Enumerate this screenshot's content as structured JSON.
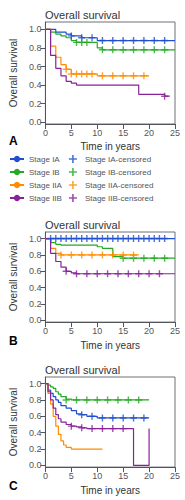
{
  "chart_data": [
    {
      "type": "line",
      "title": "Overall survival",
      "annotation": "A",
      "xlabel": "Time in years",
      "ylabel": "Overall survival",
      "xlim": [
        0,
        25
      ],
      "xticks": [
        0,
        5,
        10,
        15,
        20,
        25
      ],
      "ylim": [
        -0.02,
        1.08
      ],
      "yticks": [
        {
          "value": 0.0,
          "label": "0.0"
        },
        0.2,
        0.4,
        0.6,
        0.8,
        {
          "value": 1.0,
          "label": "1.0"
        }
      ],
      "grid": false,
      "legend": "bottom",
      "series": [
        {
          "name": "Stage IA",
          "type": "step",
          "color": "#1f4fcc",
          "x": [
            0,
            1,
            2,
            3,
            4,
            5,
            6,
            7,
            8,
            9,
            10,
            11,
            12,
            13,
            14,
            15,
            16,
            17,
            18,
            19,
            20,
            21,
            22,
            23,
            24,
            25
          ],
          "values": [
            1.0,
            1.0,
            0.97,
            0.97,
            0.95,
            0.93,
            0.93,
            0.91,
            0.91,
            0.91,
            0.88,
            0.88,
            0.88,
            0.88,
            0.88,
            0.88,
            0.88,
            0.88,
            0.88,
            0.88,
            0.88,
            0.88,
            0.88,
            0.88,
            0.88,
            0.88
          ]
        },
        {
          "name": "Stage IB",
          "type": "step",
          "color": "#22aa22",
          "x": [
            0,
            1,
            2,
            3,
            4,
            5,
            6,
            7,
            8,
            9,
            10,
            11,
            12,
            13,
            14,
            15,
            16,
            17,
            18,
            19,
            20,
            21,
            22,
            23,
            24,
            25
          ],
          "values": [
            1.0,
            0.97,
            0.95,
            0.93,
            0.91,
            0.88,
            0.86,
            0.86,
            0.86,
            0.86,
            0.8,
            0.78,
            0.78,
            0.78,
            0.78,
            0.78,
            0.78,
            0.78,
            0.78,
            0.78,
            0.78,
            0.78,
            0.78,
            0.78,
            0.78,
            0.78
          ]
        },
        {
          "name": "Stage IIA",
          "type": "step",
          "color": "#ff8c00",
          "x": [
            0,
            1,
            2,
            3,
            4,
            5,
            6,
            7,
            8,
            9,
            10,
            11,
            12,
            13,
            14,
            15,
            16,
            17,
            18,
            19,
            20
          ],
          "values": [
            1.0,
            0.82,
            0.7,
            0.62,
            0.57,
            0.52,
            0.52,
            0.52,
            0.52,
            0.52,
            0.5,
            0.5,
            0.5,
            0.5,
            0.5,
            0.5,
            0.5,
            0.5,
            0.5,
            0.5,
            0.5
          ]
        },
        {
          "name": "Stage IIB",
          "type": "step",
          "color": "#882299",
          "x": [
            0,
            1,
            2,
            3,
            4,
            5,
            6,
            7,
            8,
            9,
            10,
            11,
            12,
            13,
            14,
            15,
            16,
            17,
            18,
            19,
            20,
            21,
            22,
            23,
            24
          ],
          "values": [
            1.0,
            0.72,
            0.58,
            0.5,
            0.44,
            0.42,
            0.4,
            0.4,
            0.4,
            0.4,
            0.4,
            0.4,
            0.4,
            0.4,
            0.4,
            0.4,
            0.4,
            0.4,
            0.3,
            0.3,
            0.3,
            0.3,
            0.3,
            0.28,
            0.28
          ]
        },
        {
          "name": "Stage IA-censored",
          "type": "scatter",
          "marker": "plus",
          "color": "#1f4fcc",
          "x": [
            5,
            7,
            9,
            11,
            13,
            15,
            17,
            19,
            21,
            23
          ],
          "values": [
            0.93,
            0.91,
            0.91,
            0.88,
            0.88,
            0.88,
            0.88,
            0.88,
            0.88,
            0.88
          ]
        },
        {
          "name": "Stage IB-censored",
          "type": "scatter",
          "marker": "plus",
          "color": "#22aa22",
          "x": [
            6,
            7,
            8,
            11,
            13,
            15,
            17,
            19,
            21,
            23
          ],
          "values": [
            0.86,
            0.86,
            0.86,
            0.78,
            0.78,
            0.78,
            0.78,
            0.78,
            0.78,
            0.78
          ]
        },
        {
          "name": "Stage IIA-censored",
          "type": "scatter",
          "marker": "plus",
          "color": "#ff8c00",
          "x": [
            4,
            5,
            6,
            7,
            8,
            9,
            11,
            13,
            15,
            17,
            19
          ],
          "values": [
            0.57,
            0.52,
            0.52,
            0.52,
            0.52,
            0.52,
            0.5,
            0.5,
            0.5,
            0.5,
            0.5
          ]
        },
        {
          "name": "Stage IIB-censored",
          "type": "scatter",
          "marker": "plus",
          "color": "#882299",
          "x": [
            23
          ],
          "values": [
            0.28
          ]
        }
      ]
    },
    {
      "type": "line",
      "title": "Overall survival",
      "annotation": "B",
      "xlabel": "Time in years",
      "ylabel": "Overall survival",
      "xlim": [
        0,
        25
      ],
      "xticks": [
        0,
        5,
        10,
        15,
        20,
        25
      ],
      "ylim": [
        -0.02,
        1.08
      ],
      "yticks": [
        {
          "value": 0.0,
          "label": "0.0"
        },
        0.2,
        0.4,
        0.6,
        0.8,
        {
          "value": 1.0,
          "label": "1.0"
        }
      ],
      "grid": false,
      "series": [
        {
          "name": "Stage IA",
          "type": "step",
          "color": "#1f4fcc",
          "x": [
            0,
            0.5,
            1,
            2,
            3,
            4,
            5,
            6,
            7,
            8,
            9,
            10,
            11,
            12,
            13,
            14,
            15,
            16,
            17,
            18,
            19,
            20,
            21,
            22,
            23,
            24,
            25
          ],
          "values": [
            1.0,
            1.0,
            1.0,
            1.0,
            1.0,
            1.0,
            1.0,
            1.0,
            1.0,
            1.0,
            1.0,
            1.0,
            1.0,
            1.0,
            1.0,
            1.0,
            1.0,
            1.0,
            1.0,
            1.0,
            1.0,
            1.0,
            1.0,
            1.0,
            1.0,
            1.0,
            1.0
          ]
        },
        {
          "name": "Stage IB",
          "type": "step",
          "color": "#22aa22",
          "x": [
            0,
            1,
            2,
            3,
            4,
            5,
            6,
            7,
            8,
            9,
            10,
            11,
            12,
            13,
            14,
            15,
            16,
            17,
            18,
            19,
            20,
            21,
            22,
            23,
            24,
            25
          ],
          "values": [
            1.0,
            0.95,
            0.93,
            0.92,
            0.92,
            0.92,
            0.92,
            0.92,
            0.92,
            0.92,
            0.9,
            0.88,
            0.88,
            0.78,
            0.78,
            0.76,
            0.76,
            0.76,
            0.76,
            0.76,
            0.76,
            0.76,
            0.76,
            0.76,
            0.76,
            0.76
          ]
        },
        {
          "name": "Stage IIA",
          "type": "step",
          "color": "#ff8c00",
          "x": [
            0,
            1,
            2,
            3,
            4,
            5,
            6,
            7,
            8,
            9,
            10,
            11,
            12,
            13,
            14,
            15,
            16,
            17,
            18
          ],
          "values": [
            1.0,
            0.88,
            0.82,
            0.8,
            0.8,
            0.8,
            0.8,
            0.8,
            0.8,
            0.8,
            0.8,
            0.8,
            0.8,
            0.8,
            0.8,
            0.8,
            0.8,
            0.8,
            0.8
          ]
        },
        {
          "name": "Stage IIB",
          "type": "step",
          "color": "#882299",
          "x": [
            0,
            1,
            2,
            3,
            4,
            5,
            6,
            7,
            8,
            9,
            10,
            11,
            12,
            13,
            14,
            15,
            16,
            17,
            18,
            19,
            20,
            21,
            22,
            23,
            24,
            25
          ],
          "values": [
            1.0,
            0.82,
            0.72,
            0.65,
            0.6,
            0.58,
            0.57,
            0.57,
            0.57,
            0.57,
            0.57,
            0.57,
            0.57,
            0.57,
            0.57,
            0.57,
            0.57,
            0.57,
            0.57,
            0.57,
            0.57,
            0.57,
            0.57,
            0.57,
            0.57,
            0.57
          ]
        },
        {
          "name": "Stage IA-censored",
          "type": "scatter",
          "marker": "plus",
          "color": "#1f4fcc",
          "x": [
            1,
            2,
            3,
            4,
            5,
            6,
            7,
            8,
            9,
            10,
            11,
            12,
            13,
            14,
            15,
            16,
            17,
            18,
            19,
            20,
            21,
            22,
            23
          ],
          "values": [
            1.0,
            1.0,
            1.0,
            1.0,
            1.0,
            1.0,
            1.0,
            1.0,
            1.0,
            1.0,
            1.0,
            1.0,
            1.0,
            1.0,
            1.0,
            1.0,
            1.0,
            1.0,
            1.0,
            1.0,
            1.0,
            1.0,
            1.0
          ]
        },
        {
          "name": "Stage IB-censored",
          "type": "scatter",
          "marker": "plus",
          "color": "#22aa22",
          "x": [
            15,
            17,
            19,
            21,
            23
          ],
          "values": [
            0.76,
            0.76,
            0.76,
            0.76,
            0.76
          ]
        },
        {
          "name": "Stage IIA-censored",
          "type": "scatter",
          "marker": "plus",
          "color": "#ff8c00",
          "x": [
            3,
            5,
            7,
            9,
            11,
            13,
            15,
            17
          ],
          "values": [
            0.8,
            0.8,
            0.8,
            0.8,
            0.8,
            0.8,
            0.8,
            0.8
          ]
        },
        {
          "name": "Stage IIB-censored",
          "type": "scatter",
          "marker": "plus",
          "color": "#882299",
          "x": [
            4,
            6,
            8,
            10,
            12,
            14,
            16,
            18,
            20,
            22
          ],
          "values": [
            0.6,
            0.57,
            0.57,
            0.57,
            0.57,
            0.57,
            0.57,
            0.57,
            0.57,
            0.57
          ]
        }
      ]
    },
    {
      "type": "line",
      "title": "Overall survival",
      "annotation": "C",
      "xlabel": "Time in years",
      "ylabel": "Overall survival",
      "xlim": [
        0,
        25
      ],
      "xticks": [
        0,
        5,
        10,
        15,
        20,
        25
      ],
      "ylim": [
        -0.02,
        1.08
      ],
      "yticks": [
        {
          "value": 0.0,
          "label": "0.0"
        },
        0.2,
        0.4,
        0.6,
        0.8,
        {
          "value": 1.0,
          "label": "1.0"
        }
      ],
      "grid": false,
      "series": [
        {
          "name": "Stage IA",
          "type": "step",
          "color": "#1f4fcc",
          "x": [
            0,
            0.5,
            1,
            1.5,
            2,
            2.5,
            3,
            4,
            5,
            6,
            7,
            8,
            9,
            10,
            11,
            12,
            13,
            14,
            15,
            16,
            17,
            18,
            19,
            20
          ],
          "values": [
            1.0,
            0.92,
            0.88,
            0.84,
            0.8,
            0.77,
            0.73,
            0.7,
            0.67,
            0.63,
            0.62,
            0.6,
            0.6,
            0.58,
            0.58,
            0.58,
            0.58,
            0.58,
            0.58,
            0.58,
            0.58,
            0.58,
            0.58,
            0.58
          ]
        },
        {
          "name": "Stage IB",
          "type": "step",
          "color": "#22aa22",
          "x": [
            0,
            0.5,
            1,
            1.5,
            2,
            2.5,
            3,
            4,
            5,
            6,
            7,
            8,
            9,
            10,
            11,
            12,
            13,
            14,
            15,
            16,
            17,
            18,
            19,
            20
          ],
          "values": [
            1.0,
            0.98,
            0.96,
            0.94,
            0.9,
            0.87,
            0.84,
            0.81,
            0.8,
            0.8,
            0.8,
            0.8,
            0.8,
            0.8,
            0.8,
            0.8,
            0.8,
            0.8,
            0.8,
            0.8,
            0.8,
            0.8,
            0.8,
            0.8
          ]
        },
        {
          "name": "Stage IIA",
          "type": "step",
          "color": "#ff8c00",
          "x": [
            0,
            0.5,
            1,
            1.5,
            2,
            2.5,
            3,
            3.5,
            4,
            5,
            6,
            7,
            8,
            9,
            10,
            11
          ],
          "values": [
            1.0,
            0.88,
            0.75,
            0.6,
            0.48,
            0.38,
            0.3,
            0.25,
            0.22,
            0.2,
            0.2,
            0.2,
            0.2,
            0.2,
            0.2,
            0.2
          ]
        },
        {
          "name": "Stage IIB",
          "type": "step",
          "color": "#882299",
          "x": [
            0,
            0.5,
            1,
            1.5,
            2,
            2.5,
            3,
            4,
            5,
            6,
            7,
            8,
            9,
            10,
            11,
            12,
            13,
            14,
            15,
            16,
            17,
            18,
            19,
            20
          ],
          "values": [
            1.0,
            0.9,
            0.8,
            0.7,
            0.62,
            0.57,
            0.53,
            0.5,
            0.48,
            0.47,
            0.46,
            0.45,
            0.45,
            0.45,
            0.45,
            0.45,
            0.45,
            0.45,
            0.45,
            0.45,
            0.0,
            0.0,
            0.0,
            0.45
          ]
        },
        {
          "name": "Stage IA-censored",
          "type": "scatter",
          "marker": "plus",
          "color": "#1f4fcc",
          "x": [
            7,
            9,
            11,
            13,
            15,
            17,
            19
          ],
          "values": [
            0.62,
            0.6,
            0.58,
            0.58,
            0.58,
            0.58,
            0.58
          ]
        },
        {
          "name": "Stage IB-censored",
          "type": "scatter",
          "marker": "plus",
          "color": "#22aa22",
          "x": [
            4,
            6,
            8,
            10,
            12,
            14,
            16,
            18
          ],
          "values": [
            0.8,
            0.8,
            0.8,
            0.8,
            0.8,
            0.8,
            0.8,
            0.8
          ]
        },
        {
          "name": "Stage IIB-censored",
          "type": "scatter",
          "marker": "plus",
          "color": "#882299",
          "x": [
            5,
            7,
            9,
            11,
            13,
            15
          ],
          "values": [
            0.48,
            0.46,
            0.45,
            0.45,
            0.45,
            0.45
          ]
        }
      ]
    }
  ]
}
